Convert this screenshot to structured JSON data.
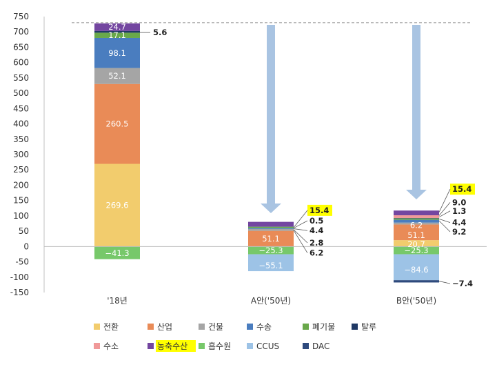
{
  "chart_data": {
    "type": "bar",
    "stacked": true,
    "categories": [
      "'18년",
      "A안('50년)",
      "B안('50년)"
    ],
    "ylim": [
      -150,
      750
    ],
    "yticks": [
      750,
      700,
      650,
      600,
      550,
      500,
      450,
      400,
      350,
      300,
      250,
      200,
      150,
      100,
      50,
      0,
      -50,
      -100,
      -150
    ],
    "reference_line": {
      "value": 730,
      "style": "dashed"
    },
    "series": [
      {
        "name": "전환",
        "color": "#f2cc6d",
        "values": [
          269.6,
          0,
          20.7
        ]
      },
      {
        "name": "산업",
        "color": "#e98b57",
        "values": [
          260.5,
          51.1,
          51.1
        ]
      },
      {
        "name": "건물",
        "color": "#a5a5a5",
        "values": [
          52.1,
          6.2,
          6.2
        ]
      },
      {
        "name": "수송",
        "color": "#4a7dbf",
        "values": [
          98.1,
          2.8,
          9.2
        ]
      },
      {
        "name": "폐기물",
        "color": "#69a84a",
        "values": [
          17.1,
          4.4,
          4.4
        ]
      },
      {
        "name": "탈루",
        "color": "#1f3864",
        "values": [
          5.6,
          0.5,
          1.3
        ]
      },
      {
        "name": "수소",
        "color": "#f09999",
        "values": [
          0,
          0,
          9.0
        ]
      },
      {
        "name": "농축수산",
        "color": "#7346a0",
        "values": [
          24.7,
          15.4,
          15.4
        ]
      },
      {
        "name": "흡수원",
        "color": "#77c86a",
        "values": [
          -41.3,
          -25.3,
          -25.3
        ]
      },
      {
        "name": "CCUS",
        "color": "#9dc3e6",
        "values": [
          0,
          -55.1,
          -84.6
        ]
      },
      {
        "name": "DAC",
        "color": "#2e4a7d",
        "values": [
          0,
          0,
          -7.4
        ]
      }
    ],
    "data_labels": [
      [
        "269.6",
        "260.5",
        "52.1",
        "98.1",
        "17.1",
        "5.6",
        "24.7",
        "−41.3"
      ],
      [
        "51.1",
        "−25.3",
        "−55.1",
        "15.4",
        "0.5",
        "4.4",
        "2.8",
        "6.2"
      ],
      [
        "6.2",
        "51.1",
        "20.7",
        "−25.3",
        "−84.6",
        "15.4",
        "9.0",
        "1.3",
        "4.4",
        "9.2",
        "−7.4"
      ]
    ],
    "legend": {
      "position": "bottom",
      "items": [
        "전환",
        "산업",
        "건물",
        "수송",
        "폐기물",
        "탈루",
        "수소",
        "농축수산",
        "흡수원",
        "CCUS",
        "DAC"
      ],
      "highlighted": "농축수산"
    },
    "highlight_color": "#ffff00"
  }
}
